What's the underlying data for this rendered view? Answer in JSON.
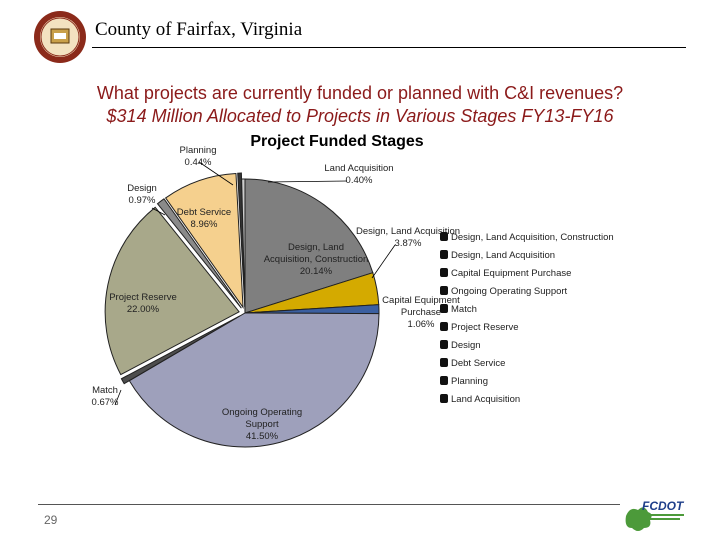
{
  "header": {
    "title": "County of Fairfax, Virginia",
    "seal_name": "Fairfax County seal"
  },
  "question": {
    "line1": "What projects are currently funded or planned with C&I revenues?",
    "line2": "$314 Million Allocated to Projects in Various Stages FY13-FY16"
  },
  "footer": {
    "page_number": "29",
    "logo_text": "FCDOT"
  },
  "colors": {
    "question_text": "#8b1a1a",
    "design_land_acq_construction": "#7f7f7f",
    "design_land_acquisition": "#d4aa00",
    "capital_equipment_purchase": "#3b5fa0",
    "ongoing_operating_support": "#9ea0bb",
    "match": "#4d4d4d",
    "project_reserve": "#a8a88a",
    "design": "#8a8a8a",
    "debt_service": "#f5d08e",
    "planning": "#333333",
    "land_acquisition": "#cccccc"
  },
  "chart_data": {
    "type": "pie",
    "title": "Project Funded Stages",
    "unit": "%",
    "slices": [
      {
        "name": "Design, Land Acquisition, Construction",
        "value": 20.14,
        "label": "Design, Land\nAcquisition, Construction\n20.14%"
      },
      {
        "name": "Design, Land Acquisition",
        "value": 3.87,
        "label": "Design, Land Acquisition\n3.87%"
      },
      {
        "name": "Capital Equipment Purchase",
        "value": 1.06,
        "label": "Capital Equipment\nPurchase\n1.06%"
      },
      {
        "name": "Ongoing Operating Support",
        "value": 41.5,
        "label": "Ongoing Operating\nSupport\n41.50%"
      },
      {
        "name": "Match",
        "value": 0.67,
        "label": "Match\n0.67%"
      },
      {
        "name": "Project Reserve",
        "value": 22.0,
        "label": "Project Reserve\n22.00%"
      },
      {
        "name": "Design",
        "value": 0.97,
        "label": "Design\n0.97%"
      },
      {
        "name": "Debt Service",
        "value": 8.96,
        "label": "Debt Service\n8.96%"
      },
      {
        "name": "Planning",
        "value": 0.44,
        "label": "Planning\n0.44%"
      },
      {
        "name": "Land Acquisition",
        "value": 0.4,
        "label": "Land Acquisition\n0.40%"
      }
    ],
    "legend": [
      "Design, Land Acquisition, Construction",
      "Design, Land Acquisition",
      "Capital Equipment Purchase",
      "Ongoing Operating Support",
      "Match",
      "Project Reserve",
      "Design",
      "Debt Service",
      "Planning",
      "Land Acquisition"
    ],
    "legend_position": "right"
  }
}
